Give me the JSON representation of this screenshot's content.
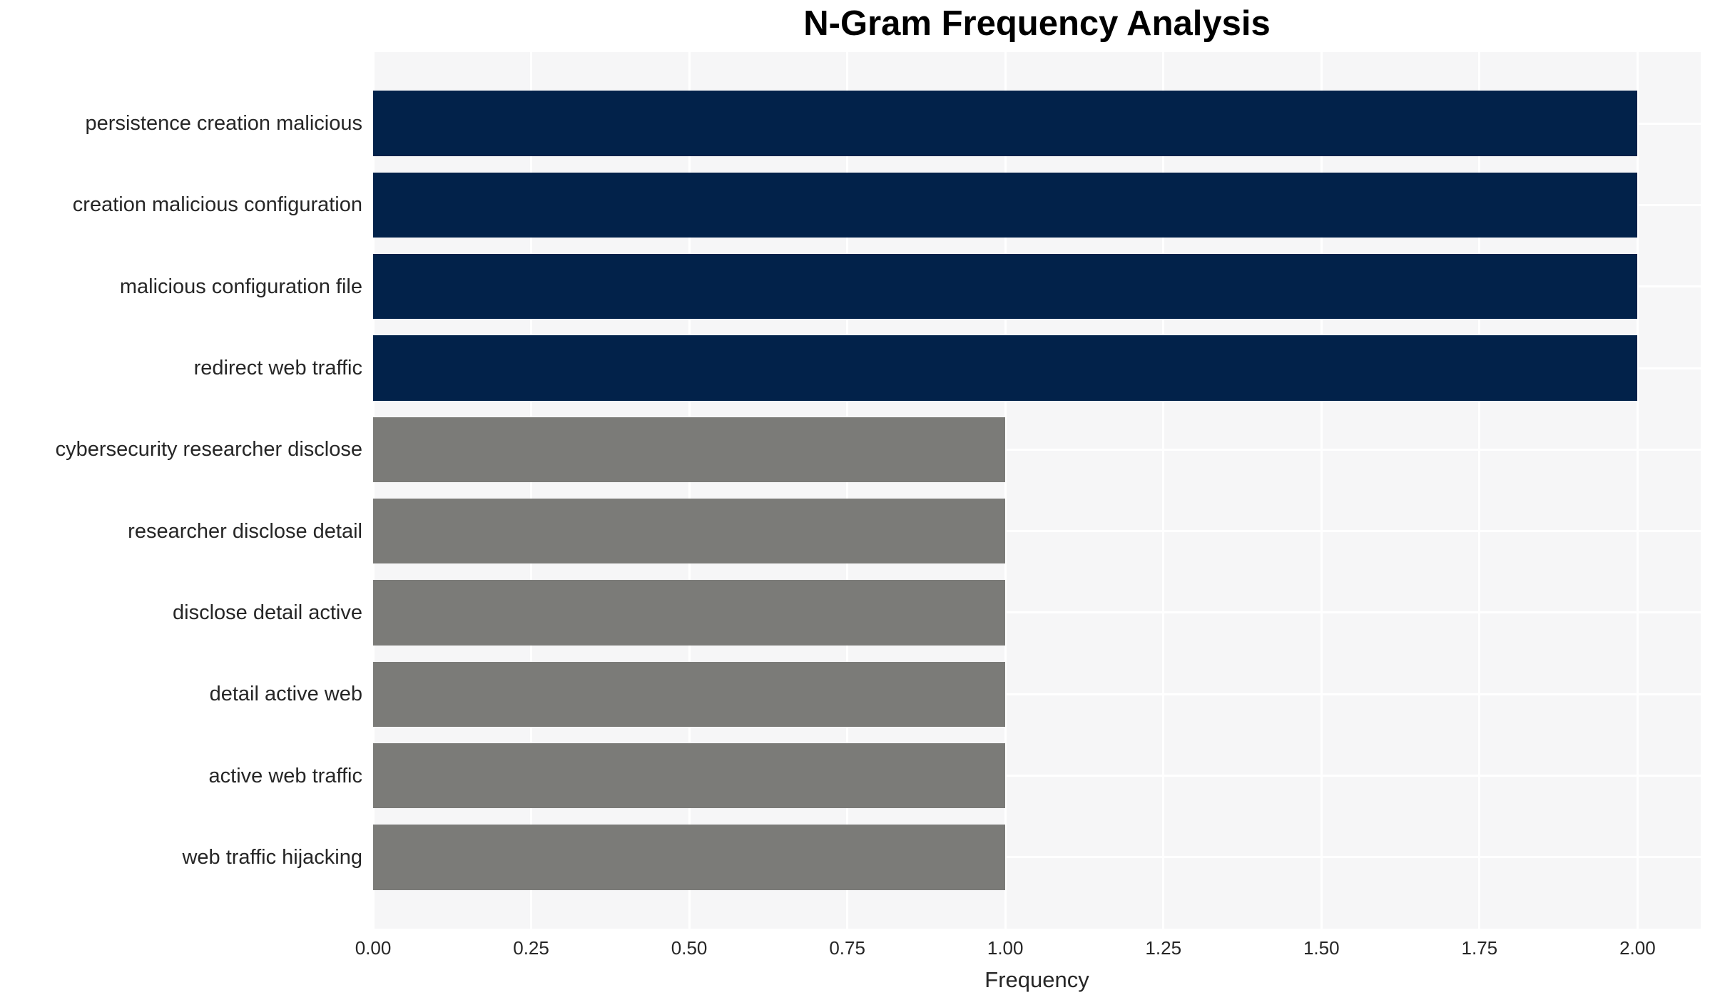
{
  "chart_data": {
    "type": "bar",
    "orientation": "horizontal",
    "title": "N-Gram Frequency Analysis",
    "xlabel": "Frequency",
    "ylabel": "",
    "categories": [
      "persistence creation malicious",
      "creation malicious configuration",
      "malicious configuration file",
      "redirect web traffic",
      "cybersecurity researcher disclose",
      "researcher disclose detail",
      "disclose detail active",
      "detail active web",
      "active web traffic",
      "web traffic hijacking"
    ],
    "values": [
      2,
      2,
      2,
      2,
      1,
      1,
      1,
      1,
      1,
      1
    ],
    "bar_colors": [
      "#02224a",
      "#02224a",
      "#02224a",
      "#02224a",
      "#7b7b78",
      "#7b7b78",
      "#7b7b78",
      "#7b7b78",
      "#7b7b78",
      "#7b7b78"
    ],
    "xlim": [
      0,
      2.1
    ],
    "xticks": [
      {
        "value": 0.0,
        "label": "0.00"
      },
      {
        "value": 0.25,
        "label": "0.25"
      },
      {
        "value": 0.5,
        "label": "0.50"
      },
      {
        "value": 0.75,
        "label": "0.75"
      },
      {
        "value": 1.0,
        "label": "1.00"
      },
      {
        "value": 1.25,
        "label": "1.25"
      },
      {
        "value": 1.5,
        "label": "1.50"
      },
      {
        "value": 1.75,
        "label": "1.75"
      },
      {
        "value": 2.0,
        "label": "2.00"
      }
    ],
    "grid": true,
    "legend": false
  },
  "colors": {
    "plot_background": "#f6f6f7",
    "gridline": "#ffffff",
    "bar_high": "#02224a",
    "bar_low": "#7b7b78",
    "tick_text": "#262626",
    "title_text": "#000000"
  }
}
